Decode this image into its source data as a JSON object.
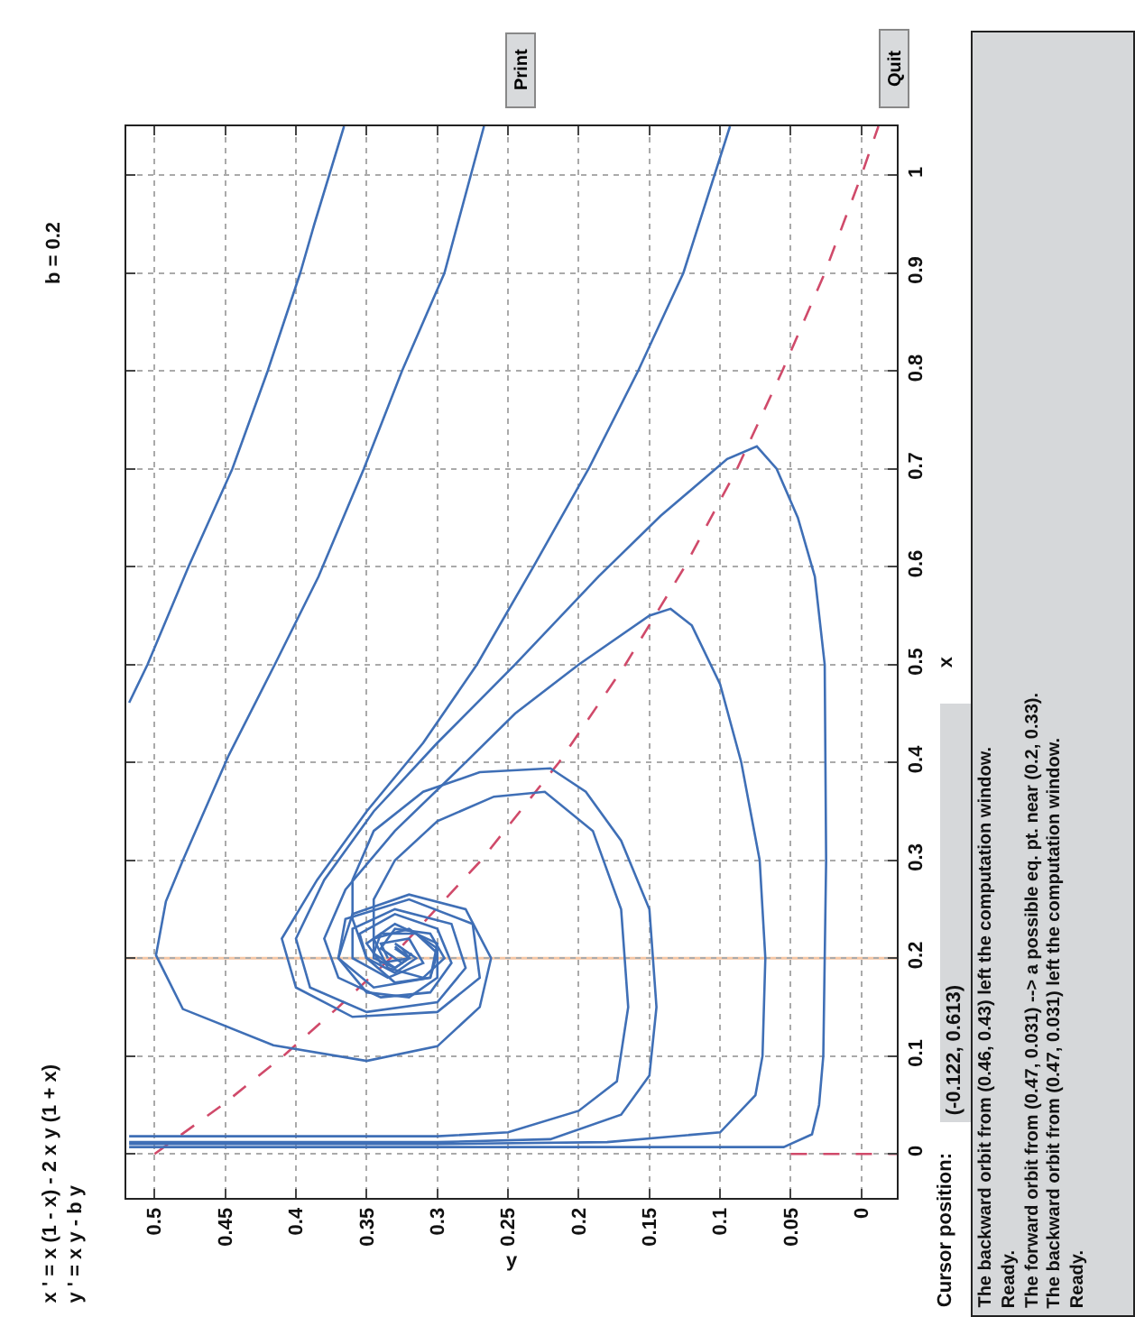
{
  "chart_data": {
    "type": "line",
    "title": "x ' = x (1 - x) - 2 x y (1 + x)",
    "subtitle": "y ' = x y - b y",
    "xlabel": "y",
    "ylabel": "x",
    "xlim": [
      0.52,
      -0.025
    ],
    "ylim": [
      -0.045,
      1.05
    ],
    "xticks": [
      0,
      0.05,
      0.1,
      0.15,
      0.2,
      0.25,
      0.3,
      0.35,
      0.4,
      0.45,
      0.5
    ],
    "yticks": [
      0,
      0.1,
      0.2,
      0.3,
      0.4,
      0.5,
      0.6,
      0.7,
      0.8,
      0.9,
      1
    ],
    "grid": true,
    "ref_lines": [
      {
        "axis": "y",
        "value": 0.2,
        "color": "#f5c6a5"
      }
    ],
    "series": [
      {
        "color": "#d04a6a",
        "line_style": "dashed",
        "values": [
          0,
          0.05,
          0.1,
          0.15,
          0.2,
          0.3,
          0.4,
          0.5,
          0.6,
          0.7,
          0.8,
          0.9,
          1,
          1.05
        ],
        "x": [
          0.5,
          0.452,
          0.409,
          0.37,
          0.333,
          0.269,
          0.214,
          0.167,
          0.125,
          0.088,
          0.056,
          0.026,
          0,
          -0.012
        ]
      },
      {
        "color": "#d04a6a",
        "line_style": "dashed",
        "values": [
          0,
          0
        ],
        "x": [
          0.05,
          -0.025
        ]
      },
      {
        "color": "#3f6fb6",
        "values": [
          1.05,
          0.95,
          0.9,
          0.8,
          0.7,
          0.6,
          0.5,
          0.461
        ],
        "x": [
          0.366,
          0.387,
          0.397,
          0.42,
          0.445,
          0.476,
          0.505,
          0.518
        ]
      },
      {
        "color": "#3f6fb6",
        "values": [
          1.05,
          0.9,
          0.8,
          0.7,
          0.59,
          0.5,
          0.406,
          0.3,
          0.258,
          0.203,
          0.148,
          0.111,
          0.095,
          0.11,
          0.15,
          0.2,
          0.25,
          0.265,
          0.245,
          0.2,
          0.165,
          0.16,
          0.18,
          0.21,
          0.23,
          0.22,
          0.2,
          0.19,
          0.2,
          0.21
        ],
        "x": [
          0.267,
          0.295,
          0.325,
          0.352,
          0.384,
          0.415,
          0.448,
          0.48,
          0.492,
          0.499,
          0.48,
          0.416,
          0.35,
          0.3,
          0.27,
          0.262,
          0.28,
          0.32,
          0.36,
          0.37,
          0.35,
          0.32,
          0.3,
          0.3,
          0.32,
          0.345,
          0.345,
          0.33,
          0.32,
          0.33
        ]
      },
      {
        "color": "#3f6fb6",
        "values": [
          1.05,
          0.9,
          0.8,
          0.7,
          0.6,
          0.5,
          0.42,
          0.35,
          0.28,
          0.22,
          0.17,
          0.14,
          0.145,
          0.18,
          0.235,
          0.26,
          0.24,
          0.2,
          0.17,
          0.18,
          0.215,
          0.235,
          0.215,
          0.195,
          0.2,
          0.21
        ],
        "x": [
          0.093,
          0.126,
          0.158,
          0.193,
          0.232,
          0.272,
          0.31,
          0.35,
          0.385,
          0.41,
          0.4,
          0.36,
          0.3,
          0.27,
          0.275,
          0.32,
          0.365,
          0.37,
          0.345,
          0.305,
          0.3,
          0.33,
          0.35,
          0.34,
          0.32,
          0.325
        ]
      },
      {
        "color": "#3f6fb6",
        "values": [
          0.007,
          0.007,
          0.007,
          0.02,
          0.05,
          0.1,
          0.3,
          0.5,
          0.59,
          0.65,
          0.7,
          0.723,
          0.71,
          0.652,
          0.59,
          0.5,
          0.42,
          0.35,
          0.28,
          0.22,
          0.17,
          0.145,
          0.155,
          0.19,
          0.235,
          0.25,
          0.23,
          0.2,
          0.18,
          0.195,
          0.22,
          0.215,
          0.2
        ],
        "x": [
          0.518,
          0.2,
          0.055,
          0.035,
          0.03,
          0.027,
          0.025,
          0.026,
          0.033,
          0.045,
          0.06,
          0.074,
          0.095,
          0.142,
          0.186,
          0.245,
          0.3,
          0.345,
          0.38,
          0.4,
          0.39,
          0.35,
          0.3,
          0.28,
          0.29,
          0.33,
          0.36,
          0.36,
          0.335,
          0.31,
          0.32,
          0.34,
          0.335
        ]
      },
      {
        "color": "#3f6fb6",
        "values": [
          0.01,
          0.01,
          0.012,
          0.022,
          0.06,
          0.1,
          0.2,
          0.3,
          0.4,
          0.48,
          0.54,
          0.557,
          0.55,
          0.5,
          0.45,
          0.4,
          0.33,
          0.27,
          0.22,
          0.18,
          0.16,
          0.165,
          0.195,
          0.23,
          0.245,
          0.225,
          0.2,
          0.185,
          0.2,
          0.215
        ],
        "x": [
          0.518,
          0.3,
          0.18,
          0.1,
          0.075,
          0.07,
          0.068,
          0.072,
          0.085,
          0.1,
          0.12,
          0.135,
          0.15,
          0.2,
          0.245,
          0.28,
          0.33,
          0.365,
          0.38,
          0.37,
          0.34,
          0.305,
          0.29,
          0.3,
          0.33,
          0.355,
          0.35,
          0.33,
          0.315,
          0.33
        ]
      },
      {
        "color": "#3f6fb6",
        "values": [
          0.012,
          0.012,
          0.015,
          0.04,
          0.08,
          0.15,
          0.25,
          0.32,
          0.37,
          0.394,
          0.39,
          0.37,
          0.33,
          0.28,
          0.24,
          0.2,
          0.175,
          0.18,
          0.205,
          0.225,
          0.225,
          0.205,
          0.19,
          0.2,
          0.212
        ],
        "x": [
          0.518,
          0.3,
          0.22,
          0.17,
          0.15,
          0.145,
          0.15,
          0.17,
          0.195,
          0.22,
          0.27,
          0.31,
          0.345,
          0.36,
          0.36,
          0.35,
          0.33,
          0.305,
          0.3,
          0.315,
          0.34,
          0.345,
          0.33,
          0.32,
          0.33
        ]
      },
      {
        "color": "#3f6fb6",
        "values": [
          0.018,
          0.018,
          0.022,
          0.044,
          0.074,
          0.15,
          0.25,
          0.33,
          0.37,
          0.365,
          0.34,
          0.3,
          0.26,
          0.22,
          0.19,
          0.18,
          0.2,
          0.225,
          0.23,
          0.21,
          0.195,
          0.205
        ],
        "x": [
          0.518,
          0.3,
          0.25,
          0.2,
          0.173,
          0.165,
          0.17,
          0.19,
          0.224,
          0.26,
          0.3,
          0.33,
          0.345,
          0.345,
          0.335,
          0.31,
          0.295,
          0.305,
          0.33,
          0.34,
          0.325,
          0.318
        ]
      }
    ],
    "annotations": [
      "b = 0.2",
      "Print",
      "Quit",
      "Cursor position:",
      "(-0.122, 0.613)",
      "The backward orbit from (0.46, 0.43) left the computation window.",
      "Ready.",
      "The forward orbit from (0.47, 0.031) --> a possible eq. pt. near (0.2, 0.33).",
      "The backward orbit from (0.47, 0.031) left the computation window.",
      "Ready."
    ]
  }
}
